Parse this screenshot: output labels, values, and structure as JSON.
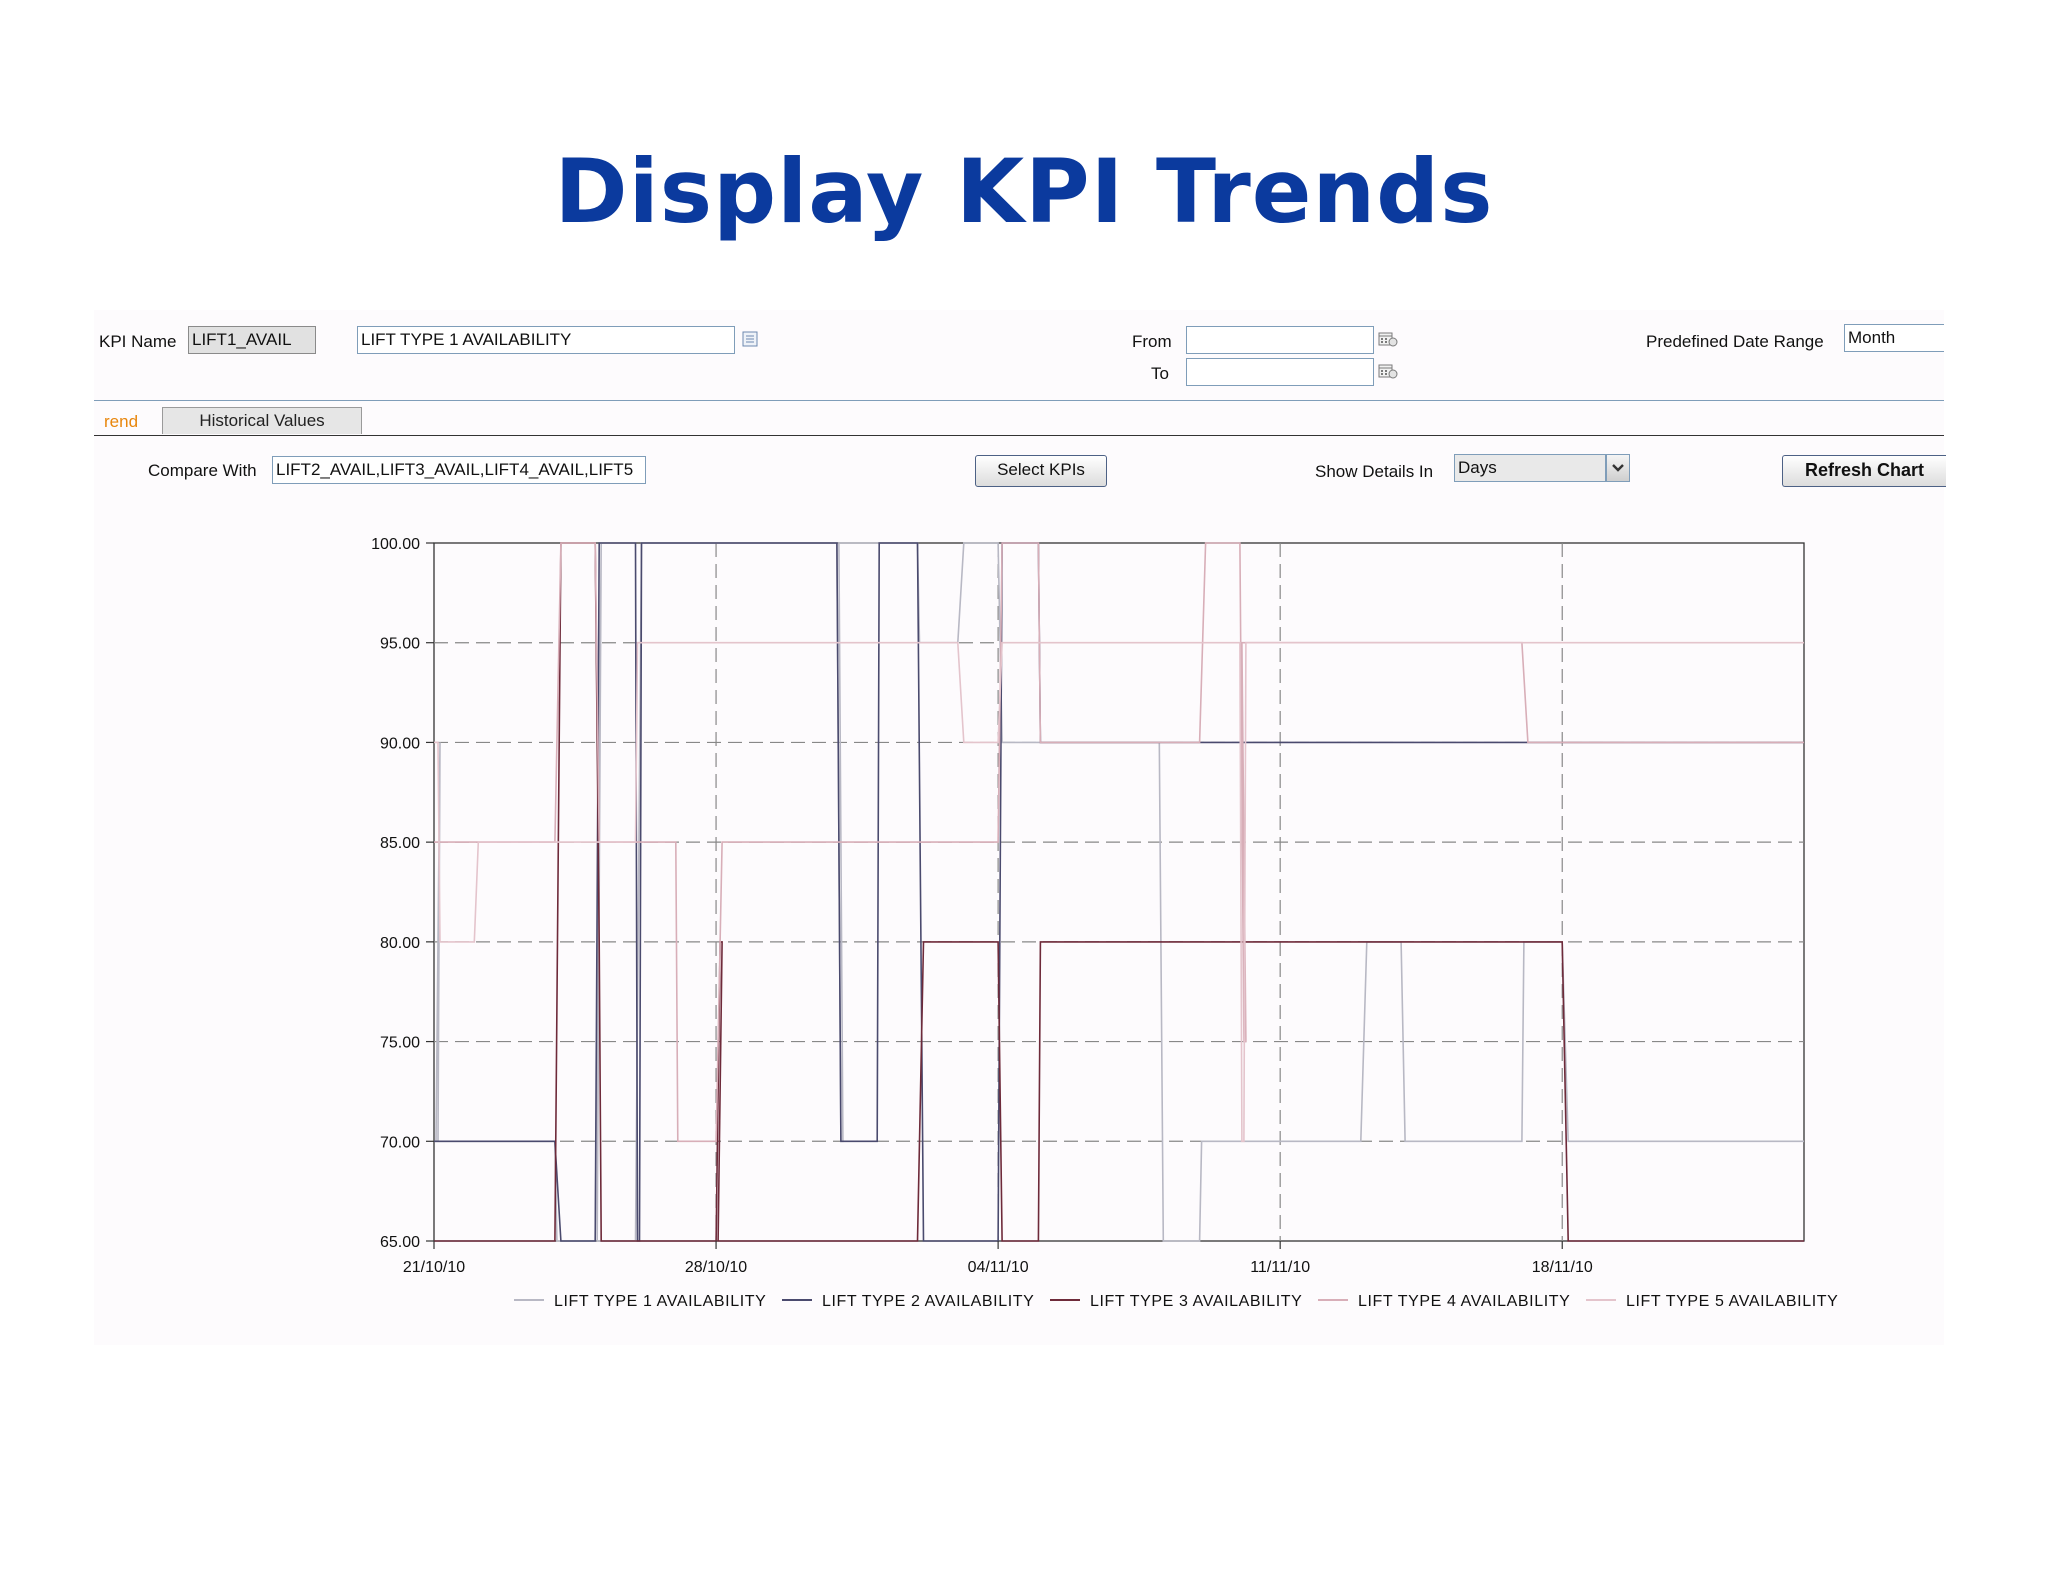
{
  "title": "Display KPI Trends",
  "form": {
    "kpi_name_label": "KPI Name",
    "kpi_code": "LIFT1_AVAIL",
    "kpi_description": "LIFT TYPE 1 AVAILABILITY",
    "from_label": "From",
    "from_value": "",
    "to_label": "To",
    "to_value": "",
    "predefined_range_label": "Predefined Date Range",
    "predefined_range_value": "Month"
  },
  "tabs": [
    {
      "label": "Trend",
      "visible_text": "rend",
      "active": true
    },
    {
      "label": "Historical Values",
      "active": false
    }
  ],
  "toolbar": {
    "compare_with_label": "Compare With",
    "compare_with_value": "LIFT2_AVAIL,LIFT3_AVAIL,LIFT4_AVAIL,LIFT5",
    "select_kpis_label": "Select KPIs",
    "show_details_label": "Show Details In",
    "show_details_value": "Days",
    "refresh_label": "Refresh Chart"
  },
  "icons": {
    "list_icon": "list-icon",
    "calendar_icon": "calendar-icon",
    "dropdown_icon": "chevron-down-icon"
  },
  "chart_data": {
    "type": "line",
    "title": "",
    "xlabel": "",
    "ylabel": "",
    "ylim": [
      65,
      100
    ],
    "xlim": [
      "2010-10-21",
      "2010-11-24"
    ],
    "y_ticks": [
      "100.00",
      "95.00",
      "90.00",
      "85.00",
      "80.00",
      "75.00",
      "70.00",
      "65.00"
    ],
    "x_ticks": [
      {
        "date": "2010-10-21",
        "label": "21/10/10"
      },
      {
        "date": "2010-10-28",
        "label": "28/10/10"
      },
      {
        "date": "2010-11-04",
        "label": "04/11/10"
      },
      {
        "date": "2010-11-11",
        "label": "11/11/10"
      },
      {
        "date": "2010-11-18",
        "label": "18/11/10"
      }
    ],
    "grid": true,
    "legend_position": "bottom",
    "series": [
      {
        "name": "LIFT TYPE 1 AVAILABILITY",
        "color": "#b8b8c4",
        "points": [
          [
            "2010-10-21",
            70
          ],
          [
            "2010-10-21",
            70
          ],
          [
            "2010-10-21",
            90
          ],
          [
            "2010-10-21",
            70
          ],
          [
            "2010-10-22",
            70
          ],
          [
            "2010-10-24",
            70
          ],
          [
            "2010-10-24",
            65
          ],
          [
            "2010-10-25",
            65
          ],
          [
            "2010-10-25",
            100
          ],
          [
            "2010-10-25",
            65
          ],
          [
            "2010-10-26",
            65
          ],
          [
            "2010-10-26",
            100
          ],
          [
            "2010-10-31",
            100
          ],
          [
            "2010-10-31",
            70
          ],
          [
            "2010-10-31",
            70
          ],
          [
            "2010-10-31",
            100
          ],
          [
            "2010-11-01",
            100
          ],
          [
            "2010-11-02",
            100
          ],
          [
            "2010-11-02",
            95
          ],
          [
            "2010-11-03",
            95
          ],
          [
            "2010-11-03",
            100
          ],
          [
            "2010-11-04",
            100
          ],
          [
            "2010-11-04",
            90
          ],
          [
            "2010-11-05",
            90
          ],
          [
            "2010-11-08",
            90
          ],
          [
            "2010-11-08",
            65
          ],
          [
            "2010-11-09",
            65
          ],
          [
            "2010-11-09",
            70
          ],
          [
            "2010-11-13",
            70
          ],
          [
            "2010-11-13",
            80
          ],
          [
            "2010-11-14",
            80
          ],
          [
            "2010-11-14",
            70
          ],
          [
            "2010-11-17",
            70
          ],
          [
            "2010-11-17",
            80
          ],
          [
            "2010-11-18",
            80
          ],
          [
            "2010-11-18",
            70
          ],
          [
            "2010-11-24",
            70
          ]
        ]
      },
      {
        "name": "LIFT TYPE 2 AVAILABILITY",
        "color": "#4a4a6e",
        "points": [
          [
            "2010-10-21",
            70
          ],
          [
            "2010-10-24",
            70
          ],
          [
            "2010-10-24",
            65
          ],
          [
            "2010-10-25",
            65
          ],
          [
            "2010-10-25",
            100
          ],
          [
            "2010-10-26",
            100
          ],
          [
            "2010-10-26",
            65
          ],
          [
            "2010-10-26",
            65
          ],
          [
            "2010-10-26",
            100
          ],
          [
            "2010-10-31",
            100
          ],
          [
            "2010-10-31",
            70
          ],
          [
            "2010-11-01",
            70
          ],
          [
            "2010-11-01",
            100
          ],
          [
            "2010-11-02",
            100
          ],
          [
            "2010-11-02",
            65
          ],
          [
            "2010-11-04",
            65
          ],
          [
            "2010-11-04",
            100
          ],
          [
            "2010-11-05",
            100
          ],
          [
            "2010-11-05",
            90
          ],
          [
            "2010-11-24",
            90
          ]
        ]
      },
      {
        "name": "LIFT TYPE 3 AVAILABILITY",
        "color": "#6e2a3a",
        "points": [
          [
            "2010-10-21",
            65
          ],
          [
            "2010-10-24",
            65
          ],
          [
            "2010-10-24",
            100
          ],
          [
            "2010-10-25",
            100
          ],
          [
            "2010-10-25",
            80
          ],
          [
            "2010-10-25",
            65
          ],
          [
            "2010-10-28",
            65
          ],
          [
            "2010-10-28",
            80
          ],
          [
            "2010-10-28",
            80
          ],
          [
            "2010-10-28",
            65
          ],
          [
            "2010-11-02",
            65
          ],
          [
            "2010-11-02",
            80
          ],
          [
            "2010-11-04",
            80
          ],
          [
            "2010-11-04",
            65
          ],
          [
            "2010-11-05",
            65
          ],
          [
            "2010-11-05",
            80
          ],
          [
            "2010-11-18",
            80
          ],
          [
            "2010-11-18",
            65
          ],
          [
            "2010-11-24",
            65
          ]
        ]
      },
      {
        "name": "LIFT TYPE 4 AVAILABILITY",
        "color": "#d8aeb8",
        "points": [
          [
            "2010-10-21",
            85
          ],
          [
            "2010-10-24",
            85
          ],
          [
            "2010-10-24",
            100
          ],
          [
            "2010-10-25",
            100
          ],
          [
            "2010-10-25",
            85
          ],
          [
            "2010-10-27",
            85
          ],
          [
            "2010-10-27",
            70
          ],
          [
            "2010-10-28",
            70
          ],
          [
            "2010-10-28",
            85
          ],
          [
            "2010-11-04",
            85
          ],
          [
            "2010-11-04",
            100
          ],
          [
            "2010-11-05",
            100
          ],
          [
            "2010-11-05",
            90
          ],
          [
            "2010-11-09",
            90
          ],
          [
            "2010-11-09",
            100
          ],
          [
            "2010-11-10",
            100
          ],
          [
            "2010-11-10",
            75
          ],
          [
            "2010-11-10",
            75
          ],
          [
            "2010-11-10",
            95
          ],
          [
            "2010-11-17",
            95
          ],
          [
            "2010-11-17",
            90
          ],
          [
            "2010-11-24",
            90
          ]
        ]
      },
      {
        "name": "LIFT TYPE 5 AVAILABILITY",
        "color": "#e4c4cc",
        "points": [
          [
            "2010-10-21",
            90
          ],
          [
            "2010-10-21",
            90
          ],
          [
            "2010-10-21",
            80
          ],
          [
            "2010-10-22",
            80
          ],
          [
            "2010-10-22",
            85
          ],
          [
            "2010-10-26",
            85
          ],
          [
            "2010-10-26",
            95
          ],
          [
            "2010-11-03",
            95
          ],
          [
            "2010-11-03",
            90
          ],
          [
            "2010-11-04",
            90
          ],
          [
            "2010-11-04",
            95
          ],
          [
            "2010-11-10",
            95
          ],
          [
            "2010-11-10",
            70
          ],
          [
            "2010-11-10",
            70
          ],
          [
            "2010-11-10",
            95
          ],
          [
            "2010-11-24",
            95
          ]
        ]
      }
    ]
  }
}
